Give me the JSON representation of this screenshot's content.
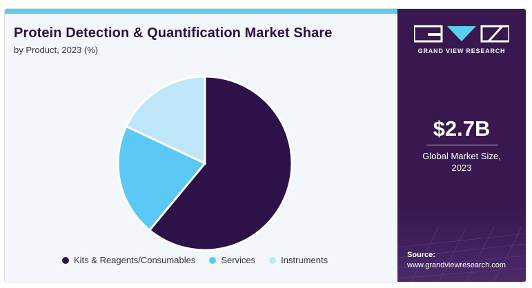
{
  "header": {
    "title": "Protein Detection & Quantification Market Share",
    "subtitle": "by Product, 2023 (%)"
  },
  "chart_data": {
    "type": "pie",
    "categories": [
      "Kits & Reagents/Consumables",
      "Services",
      "Instruments"
    ],
    "values": [
      61,
      21,
      18
    ],
    "colors": [
      "#2c1248",
      "#5bc8f5",
      "#bfe6f8"
    ],
    "legend_position": "bottom"
  },
  "sidebar": {
    "brand": "GRAND VIEW RESEARCH",
    "market_value": "$2.7B",
    "market_caption_line1": "Global Market Size,",
    "market_caption_line2": "2023",
    "source_label": "Source:",
    "source_url": "www.grandviewresearch.com",
    "logo_icon": "gvr-logo-icon"
  },
  "colors": {
    "accent_bar": "#5ad0ef",
    "panel_bg": "#38184f",
    "title_color": "#2c1248"
  }
}
